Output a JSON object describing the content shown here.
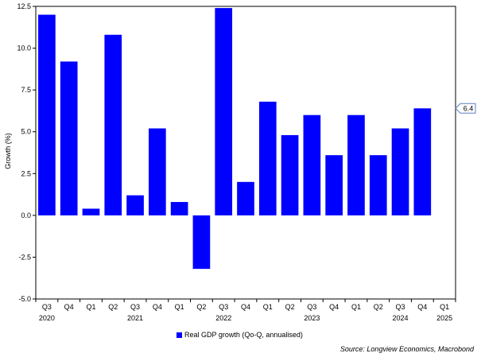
{
  "chart_data": {
    "type": "bar",
    "ylabel": "Growth (%)",
    "ylim": [
      -5.0,
      12.5
    ],
    "yticks": [
      "12.5",
      "10.0",
      "7.5",
      "5.0",
      "2.5",
      "0.0",
      "-2.5",
      "-5.0"
    ],
    "categories": [
      "Q3",
      "Q4",
      "Q1",
      "Q2",
      "Q3",
      "Q4",
      "Q1",
      "Q2",
      "Q3",
      "Q4",
      "Q1",
      "Q2",
      "Q3",
      "Q4",
      "Q1",
      "Q2",
      "Q3",
      "Q4",
      "Q1"
    ],
    "year_labels": [
      {
        "label": "2020",
        "index": 0
      },
      {
        "label": "2021",
        "index": 4
      },
      {
        "label": "2022",
        "index": 8
      },
      {
        "label": "2023",
        "index": 12
      },
      {
        "label": "2024",
        "index": 16
      },
      {
        "label": "2025",
        "index": 18
      }
    ],
    "series": [
      {
        "name": "Real GDP growth (Qo-Q, annualised)",
        "color": "#0000ff",
        "values": [
          12.0,
          9.2,
          0.4,
          10.8,
          1.2,
          5.2,
          0.8,
          -3.2,
          12.4,
          2.0,
          6.8,
          4.8,
          6.0,
          3.6,
          6.0,
          3.6,
          5.2,
          6.4,
          null
        ]
      }
    ],
    "last_value_label": "6.4",
    "grid": false,
    "legend_position": "bottom-center"
  },
  "source_text": "Source: Longview Economics, Macrobond"
}
